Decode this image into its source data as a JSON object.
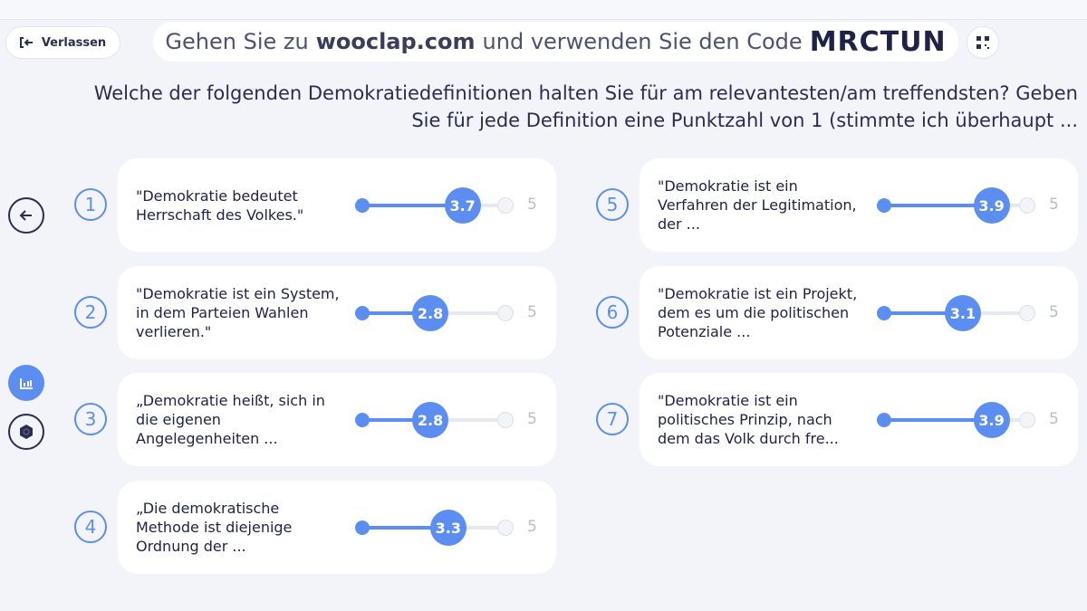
{
  "header": {
    "leave_label": "Verlassen",
    "code_prefix": "Gehen Sie zu",
    "site": "wooclap.com",
    "code_middle": "und verwenden Sie den Code",
    "code": "MRCTUN"
  },
  "question": "Welche der folgenden Demokratiedefinitionen halten Sie für am relevantesten/am treffendsten? Geben Sie für jede Definition eine Punktzahl von 1 (stimmte ich überhaupt ...",
  "scale": {
    "min": 1,
    "max": 5,
    "max_label": "5"
  },
  "colors": {
    "accent": "#5b8ef0",
    "text": "#2a2d52"
  },
  "items": [
    {
      "number": "1",
      "text": "\"Demokratie bedeutet Herrschaft des Volkes.\"",
      "value": 3.7,
      "label": "3.7"
    },
    {
      "number": "2",
      "text": "\"Demokratie ist ein System, in dem Parteien Wahlen verlieren.\"",
      "value": 2.8,
      "label": "2.8"
    },
    {
      "number": "3",
      "text": "„Demokratie heißt, sich in die eigenen Angelegenheiten ...",
      "value": 2.8,
      "label": "2.8"
    },
    {
      "number": "4",
      "text": "„Die demokratische Methode ist diejenige Ordnung der ...",
      "value": 3.3,
      "label": "3.3"
    },
    {
      "number": "5",
      "text": "\"Demokratie ist ein Verfahren der Legitimation, der ...",
      "value": 3.9,
      "label": "3.9"
    },
    {
      "number": "6",
      "text": "\"Demokratie ist ein Projekt, dem es um die politischen Potenziale ...",
      "value": 3.1,
      "label": "3.1"
    },
    {
      "number": "7",
      "text": "\"Demokratie ist ein politisches Prinzip, nach dem das Volk durch fre...",
      "value": 3.9,
      "label": "3.9"
    }
  ]
}
